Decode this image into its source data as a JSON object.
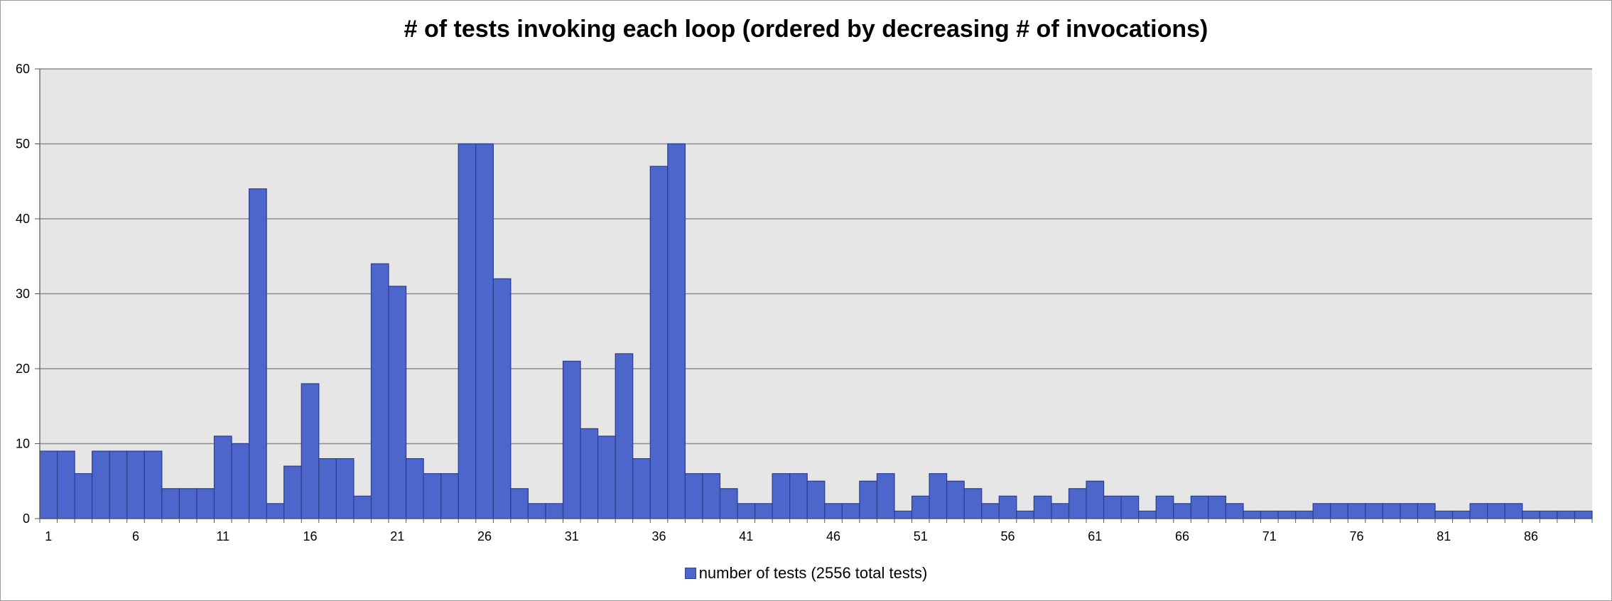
{
  "chart_data": {
    "type": "bar",
    "title": "# of tests invoking each loop (ordered by decreasing # of invocations)",
    "x": [
      1,
      2,
      3,
      4,
      5,
      6,
      7,
      8,
      9,
      10,
      11,
      12,
      13,
      14,
      15,
      16,
      17,
      18,
      19,
      20,
      21,
      22,
      23,
      24,
      25,
      26,
      27,
      28,
      29,
      30,
      31,
      32,
      33,
      34,
      35,
      36,
      37,
      38,
      39,
      40,
      41,
      42,
      43,
      44,
      45,
      46,
      47,
      48,
      49,
      50,
      51,
      52,
      53,
      54,
      55,
      56,
      57,
      58,
      59,
      60,
      61,
      62,
      63,
      64,
      65,
      66,
      67,
      68,
      69,
      70,
      71,
      72,
      73,
      74,
      75,
      76,
      77,
      78,
      79,
      80,
      81,
      82,
      83,
      84,
      85,
      86,
      87,
      88,
      89
    ],
    "x_tick_labels": [
      "1",
      "6",
      "11",
      "16",
      "21",
      "26",
      "31",
      "36",
      "41",
      "46",
      "51",
      "56",
      "61",
      "66",
      "71",
      "76",
      "81",
      "86"
    ],
    "y_tick_labels": [
      "0",
      "10",
      "20",
      "30",
      "40",
      "50",
      "60"
    ],
    "ylim": [
      0,
      60
    ],
    "grid": true,
    "legend_position": "bottom",
    "series": [
      {
        "name": "number of tests (2556 total tests)",
        "color": "#4c66cc",
        "values": [
          9,
          9,
          6,
          9,
          9,
          9,
          9,
          4,
          4,
          4,
          11,
          10,
          44,
          2,
          7,
          18,
          8,
          8,
          3,
          34,
          31,
          8,
          6,
          6,
          50,
          50,
          32,
          4,
          2,
          2,
          21,
          12,
          11,
          22,
          8,
          47,
          50,
          6,
          6,
          4,
          2,
          2,
          6,
          6,
          5,
          2,
          2,
          5,
          6,
          1,
          3,
          6,
          5,
          4,
          2,
          3,
          1,
          3,
          2,
          4,
          5,
          3,
          3,
          1,
          3,
          2,
          3,
          3,
          2,
          1,
          1,
          1,
          1,
          2,
          2,
          2,
          2,
          2,
          2,
          2,
          1,
          1,
          2,
          2,
          2,
          1,
          1,
          1,
          1
        ]
      }
    ]
  }
}
